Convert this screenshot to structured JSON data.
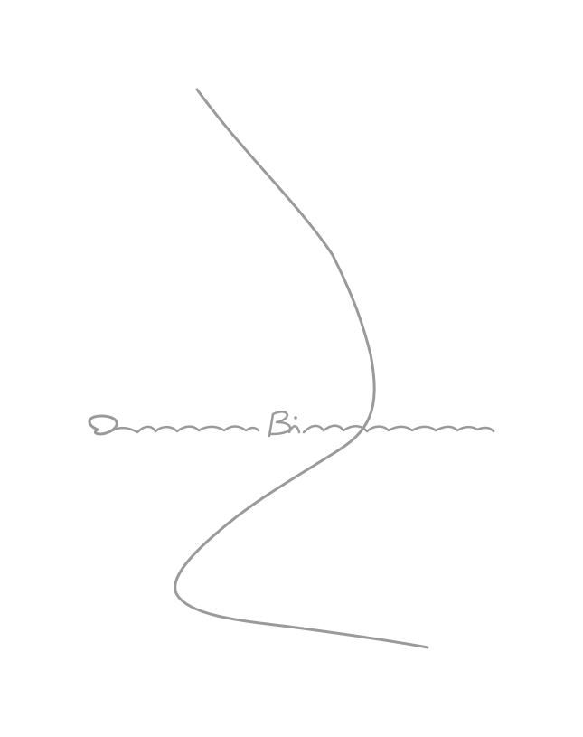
{
  "artwork": {
    "subject": "signature",
    "signature_text": "Oscar Bianco",
    "ink_color": "#9a9a9a",
    "background_color": "#ffffff"
  }
}
